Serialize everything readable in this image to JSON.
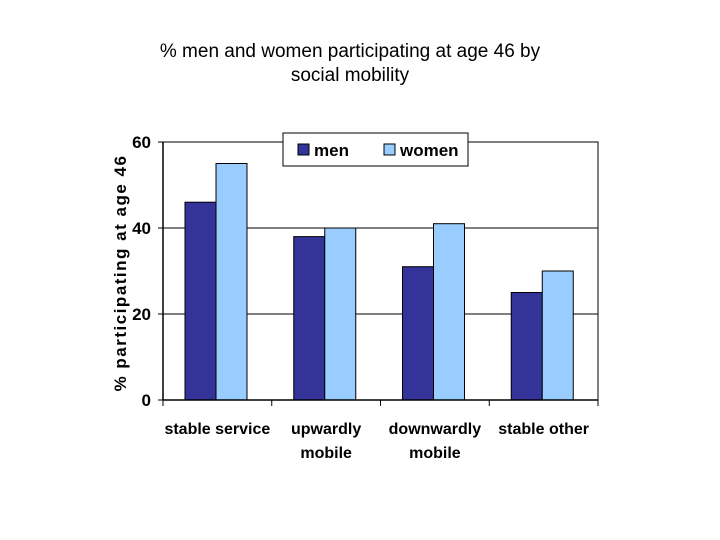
{
  "chart_data": {
    "type": "bar",
    "title_lines": [
      "% men and women participating at age 46 by",
      "social mobility"
    ],
    "ylabel": "% participating at age 46",
    "xlabel": "",
    "categories": [
      [
        "stable service"
      ],
      [
        "upwardly",
        "mobile"
      ],
      [
        "downwardly",
        "mobile"
      ],
      [
        "stable other"
      ]
    ],
    "series": [
      {
        "name": "men",
        "values": [
          46,
          38,
          31,
          25
        ],
        "color": "#333399"
      },
      {
        "name": "women",
        "values": [
          55,
          40,
          41,
          30
        ],
        "color": "#99ccff"
      }
    ],
    "ylim": [
      0,
      60
    ],
    "yticks": [
      0,
      20,
      40,
      60
    ],
    "grid": true,
    "legend_position": "top-right"
  }
}
